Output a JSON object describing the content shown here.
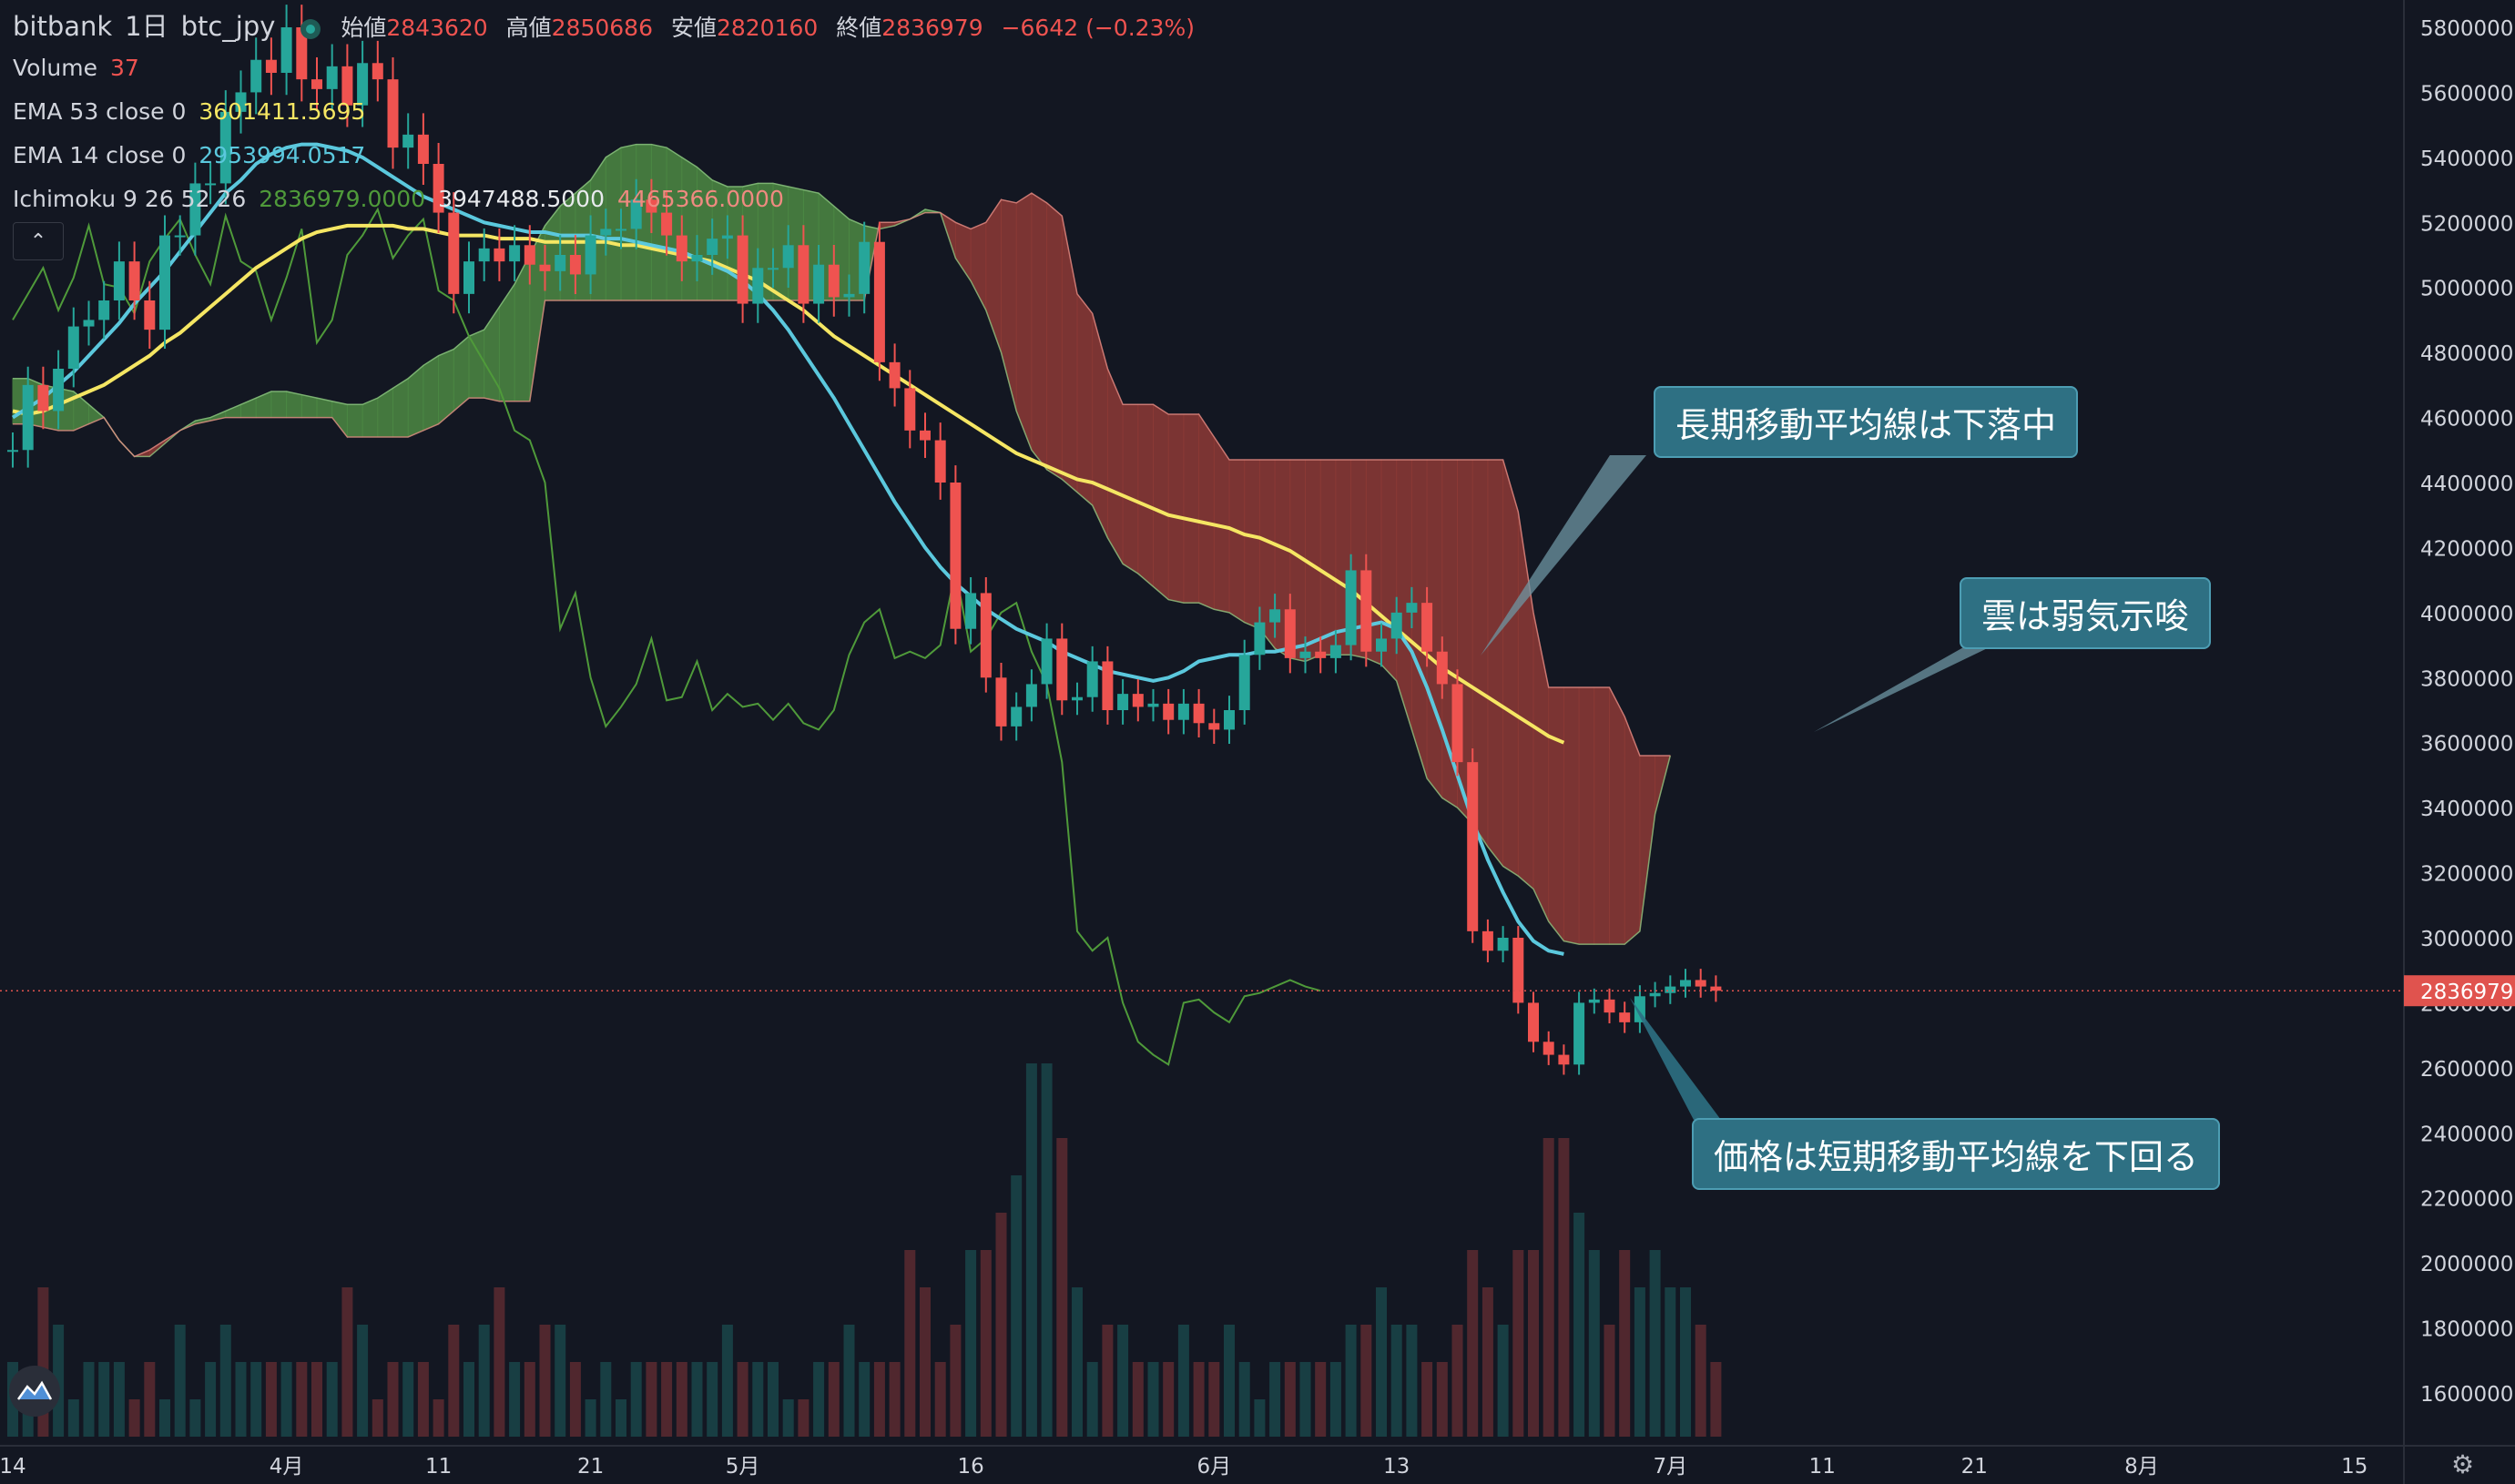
{
  "legend": {
    "exchange": "bitbank",
    "interval": "1日",
    "symbol": "btc_jpy",
    "open_label": "始値",
    "open": "2843620",
    "high_label": "高値",
    "high": "2850686",
    "low_label": "安値",
    "low": "2820160",
    "close_label": "終値",
    "close": "2836979",
    "change": "−6642 (−0.23%)",
    "volume_label": "Volume",
    "volume": "37",
    "ema53_label": "EMA 53 close 0",
    "ema53": "3601411.5695",
    "ema14_label": "EMA 14 close 0",
    "ema14": "2953994.0517",
    "ichimoku_label": "Ichimoku 9 26 52 26",
    "ichimoku_v1": "2836979.0000",
    "ichimoku_v2": "3947488.5000",
    "ichimoku_v3": "4465366.0000"
  },
  "annotations": {
    "long_ma": "長期移動平均線は下落中",
    "cloud": "雲は弱気示唆",
    "short_ma": "価格は短期移動平均線を下回る"
  },
  "colors": {
    "up": "#26a69a",
    "down": "#ef5350",
    "ema53": "#f5e663",
    "ema14": "#5bc8dd",
    "chikou": "#4f9a3a",
    "cloud_bull": "#4d8a44",
    "cloud_bear": "#8e3a36",
    "price_tag": "#e0534e"
  },
  "chart_data": {
    "type": "candlestick",
    "symbol": "btc_jpy",
    "y_ticks": [
      1600000,
      1800000,
      2000000,
      2200000,
      2400000,
      2600000,
      2800000,
      3000000,
      3200000,
      3400000,
      3600000,
      3800000,
      4000000,
      4200000,
      4400000,
      4600000,
      4800000,
      5000000,
      5200000,
      5400000,
      5600000,
      5800000
    ],
    "y_range": [
      1580000,
      5900000
    ],
    "last_price": "2836979",
    "x_ticks": [
      {
        "label": "14",
        "day": 0
      },
      {
        "label": "4月",
        "day": 18
      },
      {
        "label": "11",
        "day": 28
      },
      {
        "label": "21",
        "day": 38
      },
      {
        "label": "5月",
        "day": 48
      },
      {
        "label": "16",
        "day": 63
      },
      {
        "label": "6月",
        "day": 79
      },
      {
        "label": "13",
        "day": 91
      },
      {
        "label": "7月",
        "day": 109
      },
      {
        "label": "11",
        "day": 119
      },
      {
        "label": "21",
        "day": 129
      },
      {
        "label": "8月",
        "day": 140
      },
      {
        "label": "15",
        "day": 154
      }
    ],
    "closes": [
      4500000,
      4700000,
      4620000,
      4750000,
      4880000,
      4900000,
      4960000,
      5080000,
      4960000,
      4870000,
      5160000,
      5160000,
      5320000,
      5320000,
      5540000,
      5600000,
      5700000,
      5660000,
      5800000,
      5640000,
      5610000,
      5680000,
      5560000,
      5690000,
      5640000,
      5430000,
      5470000,
      5380000,
      5230000,
      4980000,
      5080000,
      5120000,
      5080000,
      5130000,
      5070000,
      5050000,
      5100000,
      5040000,
      5160000,
      5180000,
      5180000,
      5270000,
      5230000,
      5160000,
      5080000,
      5100000,
      5150000,
      5160000,
      4950000,
      5060000,
      5060000,
      5130000,
      4950000,
      5070000,
      4970000,
      4980000,
      5140000,
      4770000,
      4690000,
      4560000,
      4530000,
      4400000,
      3950000,
      4060000,
      3800000,
      3650000,
      3710000,
      3780000,
      3920000,
      3730000,
      3740000,
      3850000,
      3700000,
      3750000,
      3710000,
      3720000,
      3670000,
      3720000,
      3660000,
      3640000,
      3700000,
      3870000,
      3970000,
      4010000,
      3860000,
      3880000,
      3860000,
      3900000,
      4130000,
      3880000,
      3920000,
      4000000,
      4030000,
      3880000,
      3780000,
      3540000,
      3020000,
      2960000,
      3000000,
      2800000,
      2680000,
      2640000,
      2610000,
      2800000,
      2810000,
      2770000,
      2740000,
      2820000,
      2830000,
      2850000,
      2870000,
      2850000,
      2837000
    ],
    "volume_scale": [
      0,
      10
    ],
    "volumes": [
      2,
      1,
      4,
      3,
      1,
      2,
      2,
      2,
      1,
      2,
      1,
      3,
      1,
      2,
      3,
      2,
      2,
      2,
      2,
      2,
      2,
      2,
      4,
      3,
      1,
      2,
      2,
      2,
      1,
      3,
      2,
      3,
      4,
      2,
      2,
      3,
      3,
      2,
      1,
      2,
      1,
      2,
      2,
      2,
      2,
      2,
      2,
      3,
      2,
      2,
      2,
      1,
      1,
      2,
      2,
      3,
      2,
      2,
      2,
      5,
      4,
      2,
      3,
      5,
      5,
      6,
      7,
      10,
      10,
      8,
      4,
      2,
      3,
      3,
      2,
      2,
      2,
      3,
      2,
      2,
      3,
      2,
      1,
      2,
      2,
      2,
      2,
      2,
      3,
      3,
      4,
      3,
      3,
      2,
      2,
      3,
      5,
      4,
      3,
      5,
      5,
      8,
      8,
      6,
      5,
      3,
      5,
      4,
      5,
      4,
      4,
      3,
      2,
      0
    ],
    "ema53": [
      4620000,
      4610000,
      4620000,
      4640000,
      4660000,
      4680000,
      4700000,
      4730000,
      4760000,
      4790000,
      4830000,
      4860000,
      4900000,
      4940000,
      4980000,
      5020000,
      5060000,
      5090000,
      5120000,
      5150000,
      5170000,
      5180000,
      5190000,
      5190000,
      5190000,
      5190000,
      5180000,
      5180000,
      5170000,
      5160000,
      5160000,
      5160000,
      5150000,
      5150000,
      5150000,
      5140000,
      5140000,
      5140000,
      5140000,
      5140000,
      5130000,
      5130000,
      5120000,
      5110000,
      5100000,
      5090000,
      5080000,
      5060000,
      5040000,
      5020000,
      4990000,
      4960000,
      4930000,
      4890000,
      4850000,
      4820000,
      4790000,
      4760000,
      4730000,
      4700000,
      4670000,
      4640000,
      4610000,
      4580000,
      4550000,
      4520000,
      4490000,
      4470000,
      4450000,
      4430000,
      4410000,
      4400000,
      4380000,
      4360000,
      4340000,
      4320000,
      4300000,
      4290000,
      4280000,
      4270000,
      4260000,
      4240000,
      4230000,
      4210000,
      4190000,
      4160000,
      4130000,
      4100000,
      4070000,
      4030000,
      3990000,
      3950000,
      3910000,
      3870000,
      3830000,
      3800000,
      3770000,
      3740000,
      3710000,
      3680000,
      3650000,
      3620000,
      3600000
    ],
    "ema14": [
      4600000,
      4630000,
      4660000,
      4700000,
      4740000,
      4790000,
      4840000,
      4890000,
      4950000,
      5000000,
      5050000,
      5110000,
      5170000,
      5230000,
      5290000,
      5330000,
      5380000,
      5410000,
      5430000,
      5440000,
      5440000,
      5430000,
      5420000,
      5400000,
      5370000,
      5340000,
      5310000,
      5280000,
      5260000,
      5240000,
      5220000,
      5200000,
      5190000,
      5180000,
      5170000,
      5170000,
      5160000,
      5160000,
      5160000,
      5150000,
      5150000,
      5140000,
      5130000,
      5120000,
      5110000,
      5090000,
      5070000,
      5050000,
      5020000,
      4980000,
      4930000,
      4870000,
      4800000,
      4730000,
      4660000,
      4580000,
      4500000,
      4420000,
      4340000,
      4270000,
      4200000,
      4140000,
      4090000,
      4050000,
      4010000,
      3980000,
      3950000,
      3930000,
      3910000,
      3880000,
      3860000,
      3840000,
      3820000,
      3810000,
      3800000,
      3790000,
      3800000,
      3820000,
      3850000,
      3860000,
      3870000,
      3870000,
      3880000,
      3880000,
      3890000,
      3900000,
      3920000,
      3940000,
      3950000,
      3960000,
      3970000,
      3950000,
      3880000,
      3770000,
      3640000,
      3500000,
      3360000,
      3240000,
      3140000,
      3050000,
      2990000,
      2960000,
      2950000
    ],
    "cloud": {
      "x_start_day": 0,
      "span_a": [
        4720000,
        4720000,
        4700000,
        4690000,
        4680000,
        4640000,
        4600000,
        4530000,
        4480000,
        4480000,
        4520000,
        4560000,
        4590000,
        4600000,
        4620000,
        4640000,
        4660000,
        4680000,
        4680000,
        4670000,
        4660000,
        4650000,
        4640000,
        4640000,
        4660000,
        4690000,
        4720000,
        4760000,
        4790000,
        4810000,
        4850000,
        4870000,
        4940000,
        5010000,
        5100000,
        5190000,
        5250000,
        5290000,
        5330000,
        5400000,
        5430000,
        5440000,
        5440000,
        5430000,
        5400000,
        5370000,
        5330000,
        5310000,
        5310000,
        5320000,
        5320000,
        5310000,
        5300000,
        5290000,
        5250000,
        5210000,
        5190000,
        5180000,
        5190000,
        5210000,
        5240000,
        5230000,
        5090000,
        5020000,
        4930000,
        4800000,
        4620000,
        4500000,
        4440000,
        4410000,
        4370000,
        4330000,
        4230000,
        4150000,
        4120000,
        4080000,
        4040000,
        4030000,
        4030000,
        4010000,
        4000000,
        3970000,
        3950000,
        3890000,
        3860000,
        3850000,
        3870000,
        3870000,
        3870000,
        3860000,
        3840000,
        3790000,
        3640000,
        3490000,
        3430000,
        3400000,
        3350000,
        3280000,
        3220000,
        3190000,
        3150000,
        3050000,
        2990000,
        2980000,
        2980000,
        2980000,
        2980000,
        3020000,
        3380000,
        3560000
      ],
      "span_b": [
        4580000,
        4580000,
        4570000,
        4560000,
        4560000,
        4580000,
        4600000,
        4530000,
        4480000,
        4500000,
        4530000,
        4560000,
        4580000,
        4590000,
        4600000,
        4600000,
        4600000,
        4600000,
        4600000,
        4600000,
        4600000,
        4600000,
        4540000,
        4540000,
        4540000,
        4540000,
        4540000,
        4560000,
        4580000,
        4620000,
        4660000,
        4660000,
        4650000,
        4650000,
        4650000,
        4960000,
        4960000,
        4960000,
        4960000,
        4960000,
        4960000,
        4960000,
        4960000,
        4960000,
        4960000,
        4960000,
        4960000,
        4960000,
        4960000,
        4960000,
        4960000,
        4960000,
        4960000,
        4960000,
        4960000,
        4960000,
        4960000,
        5200000,
        5200000,
        5210000,
        5230000,
        5230000,
        5200000,
        5180000,
        5200000,
        5270000,
        5260000,
        5290000,
        5260000,
        5220000,
        4980000,
        4920000,
        4750000,
        4640000,
        4640000,
        4640000,
        4610000,
        4610000,
        4610000,
        4540000,
        4470000,
        4470000,
        4470000,
        4470000,
        4470000,
        4470000,
        4470000,
        4470000,
        4470000,
        4470000,
        4470000,
        4470000,
        4470000,
        4470000,
        4470000,
        4470000,
        4470000,
        4470000,
        4470000,
        4310000,
        4000000,
        3770000,
        3770000,
        3770000,
        3770000,
        3770000,
        3680000,
        3560000,
        3560000,
        3560000
      ]
    },
    "chikou_start_day": 0,
    "chikou": [
      4900000,
      4980000,
      5060000,
      4930000,
      5030000,
      5190000,
      5010000,
      5000000,
      4920000,
      5080000,
      5150000,
      5210000,
      5100000,
      5010000,
      5220000,
      5080000,
      5050000,
      4900000,
      5030000,
      5180000,
      4830000,
      4900000,
      5100000,
      5160000,
      5240000,
      5090000,
      5160000,
      5210000,
      4990000,
      4960000,
      4850000,
      4770000,
      4690000,
      4560000,
      4530000,
      4400000,
      3950000,
      4060000,
      3800000,
      3650000,
      3710000,
      3780000,
      3920000,
      3730000,
      3740000,
      3850000,
      3700000,
      3750000,
      3710000,
      3720000,
      3670000,
      3720000,
      3660000,
      3640000,
      3700000,
      3870000,
      3970000,
      4010000,
      3860000,
      3880000,
      3860000,
      3900000,
      4130000,
      3880000,
      3920000,
      4000000,
      4030000,
      3880000,
      3780000,
      3540000,
      3020000,
      2960000,
      3000000,
      2800000,
      2680000,
      2640000,
      2610000,
      2800000,
      2810000,
      2770000,
      2740000,
      2820000,
      2830000,
      2850000,
      2870000,
      2850000,
      2837000
    ]
  }
}
